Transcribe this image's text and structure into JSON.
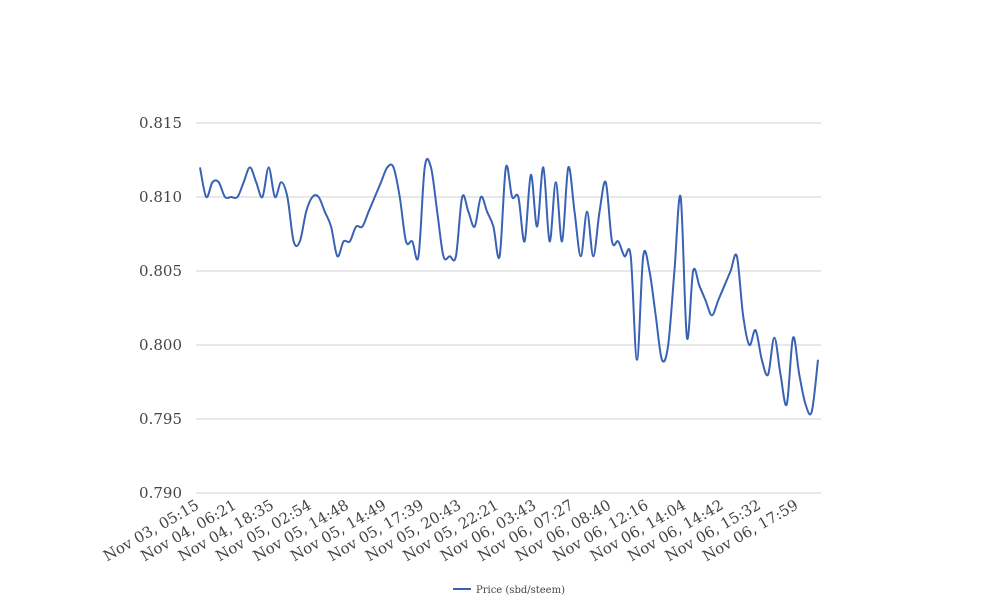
{
  "chart_data": {
    "type": "line",
    "categories": [
      "Nov 03, 05:15",
      null,
      null,
      null,
      null,
      null,
      "Nov 04, 06:21",
      null,
      null,
      null,
      null,
      null,
      "Nov 04, 18:35",
      null,
      null,
      null,
      null,
      null,
      "Nov 05, 02:54",
      null,
      null,
      null,
      null,
      null,
      "Nov 05, 14:48",
      null,
      null,
      null,
      null,
      null,
      "Nov 05, 14:49",
      null,
      null,
      null,
      null,
      null,
      "Nov 05, 17:39",
      null,
      null,
      null,
      null,
      null,
      "Nov 05, 20:43",
      null,
      null,
      null,
      null,
      null,
      "Nov 05, 22:21",
      null,
      null,
      null,
      null,
      null,
      "Nov 06, 03:43",
      null,
      null,
      null,
      null,
      null,
      "Nov 06, 07:27",
      null,
      null,
      null,
      null,
      null,
      "Nov 06, 08:40",
      null,
      null,
      null,
      null,
      null,
      "Nov 06, 12:16",
      null,
      null,
      null,
      null,
      null,
      "Nov 06, 14:04",
      null,
      null,
      null,
      null,
      null,
      "Nov 06, 14:42",
      null,
      null,
      null,
      null,
      null,
      "Nov 06, 15:32",
      null,
      null,
      null,
      null,
      null,
      "Nov 06, 17:59",
      null,
      null,
      null
    ],
    "series": [
      {
        "name": "Price (sbd/steem)",
        "color": "#3a62b4",
        "values": [
          0.812,
          0.81,
          0.811,
          0.811,
          0.81,
          0.81,
          0.81,
          0.811,
          0.812,
          0.811,
          0.81,
          0.812,
          0.81,
          0.811,
          0.81,
          0.807,
          0.807,
          0.809,
          0.81,
          0.81,
          0.809,
          0.808,
          0.806,
          0.807,
          0.807,
          0.808,
          0.808,
          0.809,
          0.81,
          0.811,
          0.812,
          0.812,
          0.81,
          0.807,
          0.807,
          0.806,
          0.812,
          0.812,
          0.809,
          0.806,
          0.806,
          0.806,
          0.81,
          0.809,
          0.808,
          0.81,
          0.809,
          0.808,
          0.806,
          0.812,
          0.81,
          0.81,
          0.807,
          0.8115,
          0.808,
          0.812,
          0.807,
          0.811,
          0.807,
          0.812,
          0.809,
          0.806,
          0.809,
          0.806,
          0.809,
          0.811,
          0.807,
          0.807,
          0.806,
          0.806,
          0.799,
          0.806,
          0.805,
          0.802,
          0.799,
          0.8,
          0.805,
          0.81,
          0.8005,
          0.805,
          0.804,
          0.803,
          0.802,
          0.803,
          0.804,
          0.805,
          0.806,
          0.802,
          0.8,
          0.801,
          0.799,
          0.798,
          0.8005,
          0.798,
          0.796,
          0.8005,
          0.798,
          0.796,
          0.7955,
          0.799
        ]
      }
    ],
    "ylim": [
      0.79,
      0.815
    ],
    "yticks": [
      {
        "value": 0.79,
        "label": "0.790"
      },
      0.795,
      {
        "value": 0.8,
        "label": "0.800"
      },
      0.805,
      {
        "value": 0.81,
        "label": "0.810"
      },
      0.815
    ],
    "grid": true,
    "legend": "bottom"
  }
}
